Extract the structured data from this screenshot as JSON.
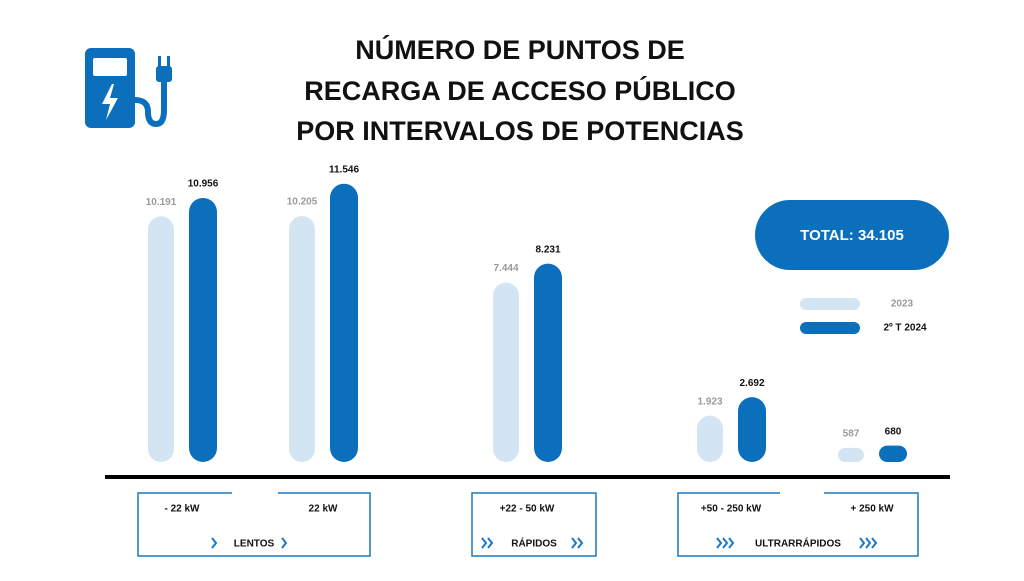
{
  "chart_data": {
    "type": "bar",
    "title": [
      "NÚMERO DE PUNTOS DE",
      "RECARGA DE ACCESO PÚBLICO",
      "POR INTERVALOS DE POTENCIAS"
    ],
    "categories": [
      "- 22 kW",
      "22 kW",
      "+22 - 50 kW",
      "+50 - 250 kW",
      "+ 250 kW"
    ],
    "groups": [
      "LENTOS",
      "RÁPIDOS",
      "ULTRARRÁPIDOS"
    ],
    "series": [
      {
        "name": "2023",
        "color": "#d3e5f3",
        "values": [
          10191,
          10205,
          7444,
          1923,
          587
        ],
        "value_labels": [
          "10.191",
          "10.205",
          "7.444",
          "1.923",
          "587"
        ]
      },
      {
        "name": "2º T 2024",
        "color": "#0b6fbb",
        "values": [
          10956,
          11546,
          8231,
          2692,
          680
        ],
        "value_labels": [
          "10.956",
          "11.546",
          "8.231",
          "2.692",
          "680"
        ]
      }
    ],
    "annotations": [
      "TOTAL: 34.105"
    ]
  }
}
